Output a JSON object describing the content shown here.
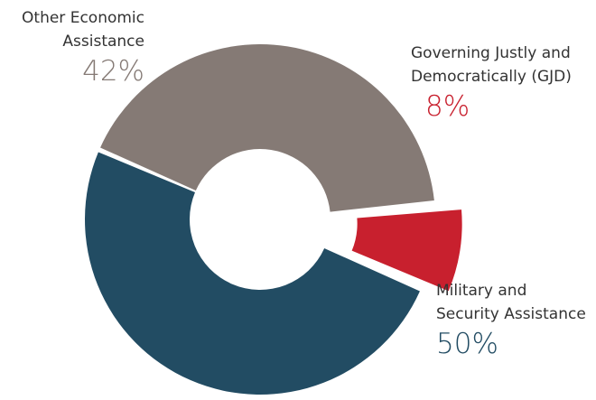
{
  "chart_data": {
    "type": "pie",
    "variant": "donut",
    "categories": [
      "Other Economic Assistance",
      "Governing Justly and Democratically (GJD)",
      "Military and Security Assistance"
    ],
    "values": [
      42,
      8,
      50
    ],
    "unit": "%",
    "colors": [
      "#857a75",
      "#c8202e",
      "#224c63"
    ],
    "exploded": [
      false,
      true,
      false
    ],
    "labels": {
      "other": {
        "line1": "Other Economic",
        "line2": "Assistance",
        "pct": "42%"
      },
      "gjd": {
        "line1": "Governing Justly and",
        "line2": "Democratically (GJD)",
        "pct": "8%"
      },
      "military": {
        "line1": "Military and",
        "line2": "Security Assistance",
        "pct": "50%"
      }
    }
  }
}
